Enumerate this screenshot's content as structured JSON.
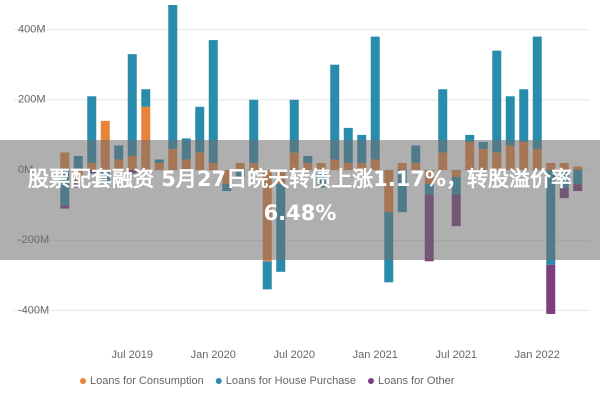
{
  "chart_data": {
    "type": "stacked-bar",
    "banner": "股票配套融资 5月27日皖天转债上涨1.17%，转股溢价率6.48%",
    "categories": [
      null,
      null,
      null,
      null,
      null,
      "Jul 2019",
      null,
      null,
      null,
      null,
      null,
      "Jan 2020",
      null,
      null,
      null,
      null,
      null,
      "Jul 2020",
      null,
      null,
      null,
      null,
      null,
      "Jan 2021",
      null,
      null,
      null,
      null,
      null,
      "Jul 2021",
      null,
      null,
      null,
      null,
      null,
      "Jan 2022",
      null,
      null,
      null
    ],
    "series": [
      {
        "name": "Loans for Consumption",
        "color": "#e8833a",
        "values": [
          50,
          -30,
          20,
          140,
          30,
          40,
          180,
          20,
          60,
          30,
          50,
          20,
          -40,
          20,
          20,
          -260,
          -40,
          50,
          20,
          20,
          30,
          20,
          20,
          30,
          -120,
          20,
          20,
          -40,
          50,
          -20,
          80,
          60,
          50,
          70,
          80,
          60,
          20,
          20,
          10
        ]
      },
      {
        "name": "Loans for House Purchase",
        "color": "#2a8cad",
        "values": [
          -100,
          40,
          190,
          -40,
          40,
          290,
          50,
          10,
          410,
          60,
          130,
          350,
          -20,
          -20,
          180,
          -80,
          -250,
          150,
          20,
          -50,
          270,
          100,
          80,
          350,
          -200,
          -120,
          50,
          -30,
          180,
          -50,
          20,
          20,
          290,
          140,
          150,
          320,
          -270,
          -50,
          -40
        ]
      },
      {
        "name": "Loans for Other",
        "color": "#7b3f7f",
        "values": [
          -10,
          -20,
          -10,
          0,
          0,
          -10,
          0,
          0,
          0,
          0,
          0,
          0,
          0,
          0,
          0,
          0,
          0,
          0,
          0,
          0,
          0,
          0,
          0,
          0,
          0,
          0,
          0,
          -190,
          0,
          -90,
          0,
          0,
          0,
          0,
          0,
          0,
          -140,
          -30,
          -20
        ]
      }
    ],
    "ylim": [
      -470,
      470
    ],
    "yticks": [
      {
        "value": -400,
        "label": "-400M"
      },
      {
        "value": -200,
        "label": "-200M"
      },
      {
        "value": 0,
        "label": "0M"
      },
      {
        "value": 200,
        "label": "200M"
      },
      {
        "value": 400,
        "label": "400M"
      }
    ],
    "grid": true
  }
}
